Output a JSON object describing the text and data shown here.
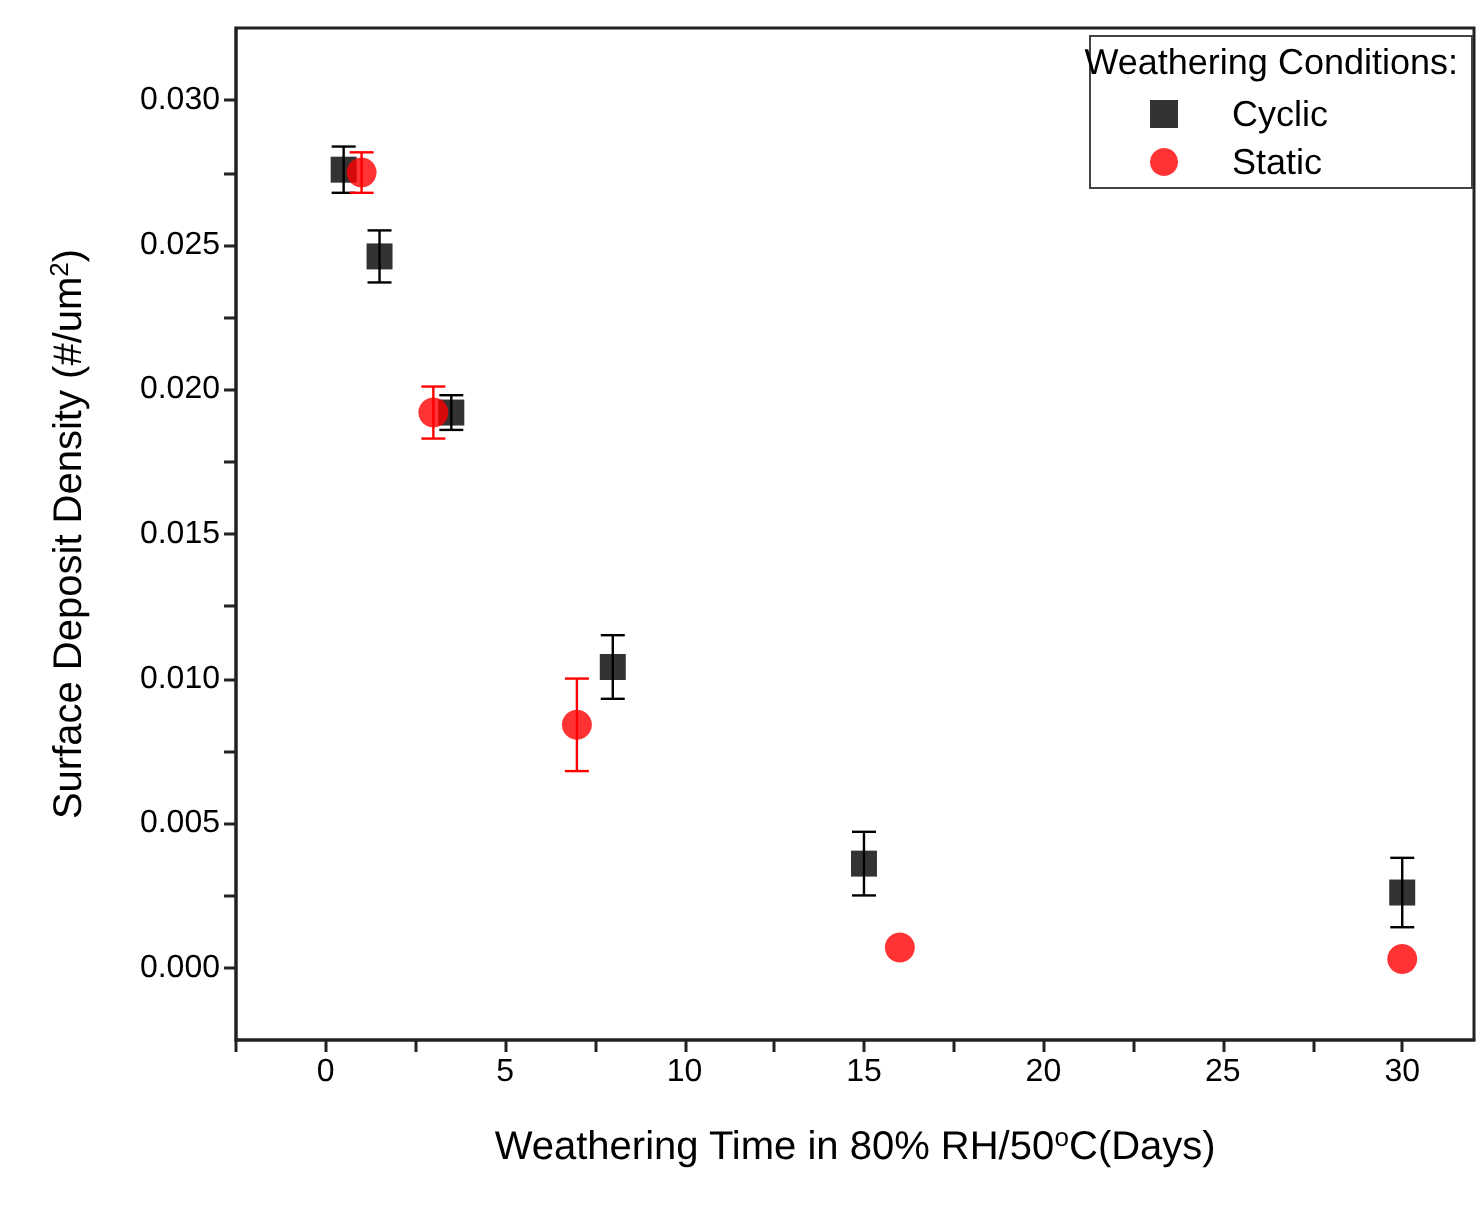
{
  "chart_data": {
    "type": "scatter",
    "xlabel": "Weathering Time in 80% RH/50$^{o}$C(Days)",
    "ylabel": "Surface Deposit Density (#/um$^{2}$)",
    "legend_title": "Weathering Conditions:",
    "xlim": [
      -2.5,
      32
    ],
    "xticks": [
      {
        "value": -2.5,
        "label": null
      },
      0,
      {
        "value": 2.5,
        "label": null
      },
      5,
      {
        "value": 7.5,
        "label": null
      },
      10,
      {
        "value": 12.5,
        "label": null
      },
      15,
      {
        "value": 17.5,
        "label": null
      },
      20,
      {
        "value": 22.5,
        "label": null
      },
      25,
      {
        "value": 27.5,
        "label": null
      },
      30
    ],
    "ylim": [
      -0.0025,
      0.0325
    ],
    "yticks": [
      {
        "value": 0,
        "label": "0.000"
      },
      {
        "value": 0.0025,
        "label": null
      },
      {
        "value": 0.005,
        "label": "0.005"
      },
      {
        "value": 0.0075,
        "label": null
      },
      {
        "value": 0.01,
        "label": "0.010"
      },
      {
        "value": 0.0125,
        "label": null
      },
      {
        "value": 0.015,
        "label": "0.015"
      },
      {
        "value": 0.0175,
        "label": null
      },
      {
        "value": 0.02,
        "label": "0.020"
      },
      {
        "value": 0.0225,
        "label": null
      },
      {
        "value": 0.025,
        "label": "0.025"
      },
      {
        "value": 0.0275,
        "label": null
      },
      {
        "value": 0.03,
        "label": "0.030"
      }
    ],
    "grid": false,
    "legend": "top right",
    "series": [
      {
        "name": "Cyclic",
        "color": "#000000",
        "marker": "square",
        "x": [
          0.5,
          1.5,
          3.5,
          8,
          15,
          30
        ],
        "values": [
          0.0276,
          0.0246,
          0.0192,
          0.0104,
          0.0036,
          0.0026
        ],
        "errors": [
          0.0008,
          0.0009,
          0.0006,
          0.0011,
          0.0011,
          0.0012
        ]
      },
      {
        "name": "Static",
        "color": "#ff0000",
        "marker": "circle",
        "x": [
          1,
          3,
          7,
          16,
          30
        ],
        "values": [
          0.0275,
          0.0192,
          0.0084,
          0.0007,
          0.0003
        ],
        "errors": [
          0.0007,
          0.0009,
          0.0016,
          null,
          null
        ]
      }
    ]
  }
}
